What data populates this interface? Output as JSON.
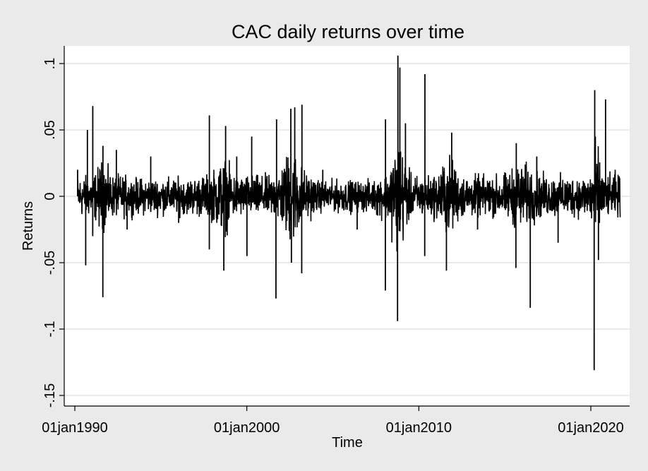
{
  "chart_data": {
    "type": "line",
    "title": "CAC daily returns over time",
    "xlabel": "Time",
    "ylabel": "Returns",
    "xlim": [
      "1990-01-01",
      "2021-12-31"
    ],
    "ylim": [
      -0.155,
      0.11
    ],
    "x_ticks": [
      {
        "value": "1990-01-01",
        "label": "01jan1990"
      },
      {
        "value": "2000-01-01",
        "label": "01jan2000"
      },
      {
        "value": "2010-01-01",
        "label": "01jan2010"
      },
      {
        "value": "2020-01-01",
        "label": "01jan2020"
      }
    ],
    "y_ticks": [
      {
        "value": 0.1,
        "label": ".1"
      },
      {
        "value": 0.05,
        "label": ".05"
      },
      {
        "value": 0,
        "label": "0"
      },
      {
        "value": -0.05,
        "label": "-.05"
      },
      {
        "value": -0.1,
        "label": "-.1"
      },
      {
        "value": -0.15,
        "label": "-.15"
      }
    ],
    "grid": "horizontal",
    "legend": "none",
    "line_color": "#000000",
    "series": [
      {
        "values": [
          {
            "x": "1990-03-01",
            "y": 0.02
          },
          {
            "x": "1990-06-01",
            "y": -0.012
          },
          {
            "x": "1990-08-20",
            "y": -0.052
          },
          {
            "x": "1990-09-25",
            "y": 0.05
          },
          {
            "x": "1991-01-16",
            "y": -0.03
          },
          {
            "x": "1991-01-17",
            "y": 0.068
          },
          {
            "x": "1991-08-19",
            "y": -0.076
          },
          {
            "x": "1991-08-21",
            "y": 0.038
          },
          {
            "x": "1992-06-01",
            "y": 0.035
          },
          {
            "x": "1993-01-15",
            "y": -0.025
          },
          {
            "x": "1994-06-01",
            "y": 0.03
          },
          {
            "x": "1996-01-15",
            "y": -0.02
          },
          {
            "x": "1997-10-27",
            "y": -0.04
          },
          {
            "x": "1997-10-28",
            "y": 0.061
          },
          {
            "x": "1998-08-31",
            "y": -0.056
          },
          {
            "x": "1998-10-08",
            "y": 0.053
          },
          {
            "x": "1999-06-01",
            "y": 0.03
          },
          {
            "x": "2000-01-04",
            "y": -0.045
          },
          {
            "x": "2000-04-14",
            "y": 0.045
          },
          {
            "x": "2001-09-11",
            "y": -0.077
          },
          {
            "x": "2001-09-24",
            "y": 0.058
          },
          {
            "x": "2002-07-24",
            "y": 0.066
          },
          {
            "x": "2002-08-05",
            "y": -0.05
          },
          {
            "x": "2002-10-15",
            "y": 0.067
          },
          {
            "x": "2003-03-17",
            "y": 0.069
          },
          {
            "x": "2003-03-12",
            "y": -0.058
          },
          {
            "x": "2004-06-01",
            "y": 0.02
          },
          {
            "x": "2006-06-01",
            "y": -0.025
          },
          {
            "x": "2008-01-21",
            "y": -0.071
          },
          {
            "x": "2008-01-24",
            "y": 0.058
          },
          {
            "x": "2008-10-06",
            "y": -0.094
          },
          {
            "x": "2008-10-13",
            "y": 0.106
          },
          {
            "x": "2008-11-24",
            "y": 0.097
          },
          {
            "x": "2009-03-23",
            "y": 0.055
          },
          {
            "x": "2010-05-06",
            "y": -0.045
          },
          {
            "x": "2010-05-10",
            "y": 0.092
          },
          {
            "x": "2011-08-10",
            "y": -0.056
          },
          {
            "x": "2011-11-30",
            "y": 0.048
          },
          {
            "x": "2013-06-01",
            "y": -0.025
          },
          {
            "x": "2015-08-24",
            "y": -0.054
          },
          {
            "x": "2015-09-01",
            "y": 0.04
          },
          {
            "x": "2016-06-24",
            "y": -0.084
          },
          {
            "x": "2016-11-09",
            "y": 0.03
          },
          {
            "x": "2018-02-05",
            "y": -0.035
          },
          {
            "x": "2020-03-12",
            "y": -0.131
          },
          {
            "x": "2020-03-24",
            "y": 0.08
          },
          {
            "x": "2020-04-06",
            "y": 0.045
          },
          {
            "x": "2020-06-11",
            "y": -0.048
          },
          {
            "x": "2020-11-09",
            "y": 0.073
          },
          {
            "x": "2021-06-01",
            "y": 0.02
          }
        ]
      }
    ]
  }
}
